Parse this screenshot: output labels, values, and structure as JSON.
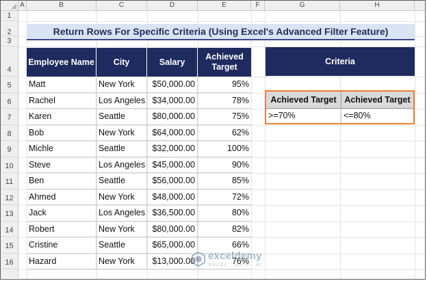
{
  "columns": [
    "A",
    "B",
    "C",
    "D",
    "E",
    "F",
    "G",
    "H"
  ],
  "rows": [
    "1",
    "2",
    "3",
    "4",
    "5",
    "6",
    "7",
    "8",
    "9",
    "10",
    "11",
    "12",
    "13",
    "14",
    "15",
    "16"
  ],
  "title": "Return Rows For Specific Criteria (Using Excel's Advanced Filter Feature)",
  "table": {
    "headers": [
      "Employee Name",
      "City",
      "Salary",
      "Achieved Target"
    ],
    "rows": [
      [
        "Matt",
        "New York",
        "$50,000.00",
        "95%"
      ],
      [
        "Rachel",
        "Los Angeles",
        "$34,000.00",
        "78%"
      ],
      [
        "Karen",
        "Seattle",
        "$80,000.00",
        "75%"
      ],
      [
        "Bob",
        "New York",
        "$64,000.00",
        "62%"
      ],
      [
        "Michle",
        "Seattle",
        "$32,000.00",
        "100%"
      ],
      [
        "Steve",
        "Los Angeles",
        "$45,000.00",
        "90%"
      ],
      [
        "Ben",
        "Seattle",
        "$56,000.00",
        "85%"
      ],
      [
        "Ahmed",
        "New York",
        "$48,000.00",
        "72%"
      ],
      [
        "Jack",
        "Los Angeles",
        "$36,500.00",
        "80%"
      ],
      [
        "Robert",
        "New York",
        "$80,000.00",
        "82%"
      ],
      [
        "Cristine",
        "Seattle",
        "$65,000.00",
        "66%"
      ],
      [
        "Hazard",
        "New York",
        "$13,000.00",
        "76%"
      ]
    ]
  },
  "criteria": {
    "title": "Criteria",
    "headers": [
      "Achieved Target",
      "Achieved Target"
    ],
    "values": [
      ">=70%",
      "<=80%"
    ]
  },
  "watermark": {
    "name": "exceldemy",
    "tagline": "EXCEL · DATA · BI",
    "icon": "exceldemy-logo-icon"
  },
  "colors": {
    "header_fill": "#1f2a5e",
    "title_fill": "#dae3f3",
    "criteria_border": "#ed7d31"
  }
}
